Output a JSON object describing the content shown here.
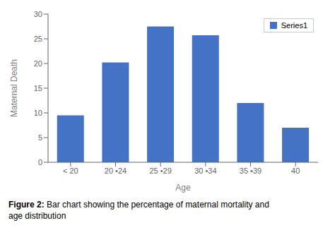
{
  "chart_data": {
    "type": "bar",
    "categories": [
      "< 20",
      "20 •24",
      "25 •29",
      "30 •34",
      "35 •39",
      "40"
    ],
    "series": [
      {
        "name": "Series1",
        "color": "#4472C4",
        "values": [
          9.5,
          20.2,
          27.5,
          25.7,
          12.0,
          7.0
        ]
      }
    ],
    "xlabel": "Age",
    "ylabel": "Maternal Death",
    "ylim": [
      0,
      30
    ],
    "yticks": [
      0,
      5,
      10,
      15,
      20,
      25,
      30
    ],
    "grid": false,
    "legend": "upper right",
    "annotations": [
      "Figure 2:",
      " Bar chart showing the percentage of maternal mortality and\nage distribution"
    ]
  }
}
